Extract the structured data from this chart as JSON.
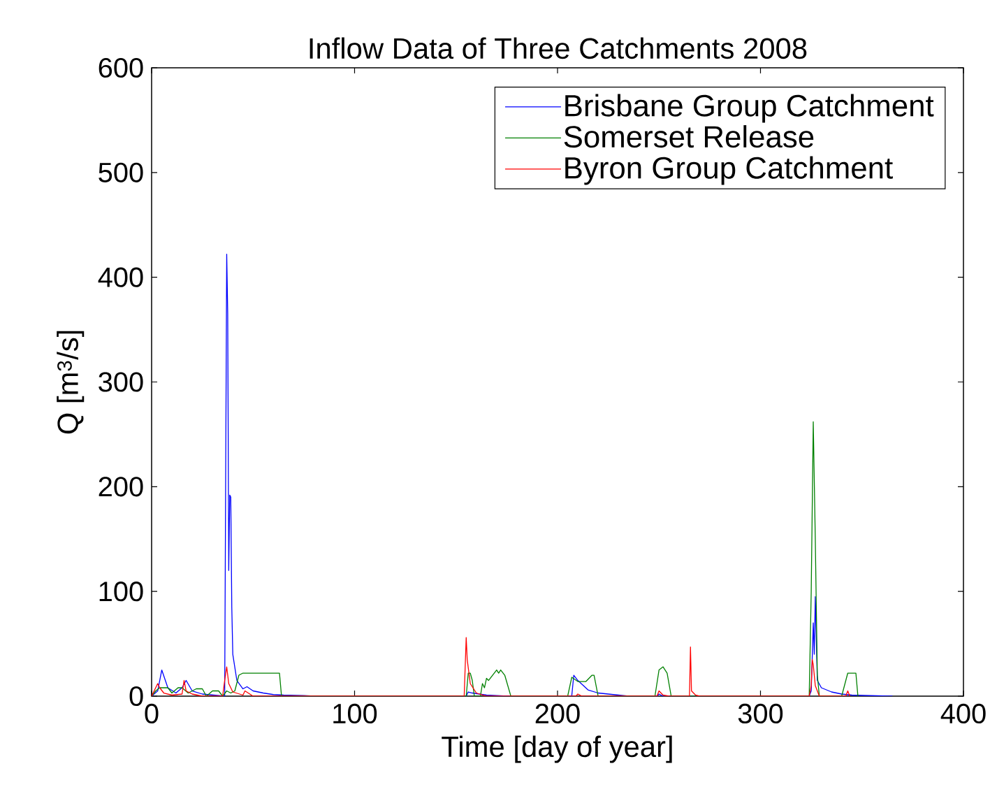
{
  "chart_data": {
    "type": "line",
    "title": "Inflow Data of Three Catchments 2008",
    "xlabel": "Time [day of year]",
    "ylabel": "Q [m$^{3}$/s]",
    "xlim": [
      0,
      400
    ],
    "ylim": [
      0,
      600
    ],
    "xticks": [
      0,
      100,
      200,
      300,
      400
    ],
    "yticks": [
      0,
      100,
      200,
      300,
      400,
      500,
      600
    ],
    "grid": false,
    "legend": "top right",
    "line_style": "solid",
    "marker": "none",
    "series": [
      {
        "name": "Brisbane Group Catchment",
        "color": "#0000ff",
        "x": [
          0,
          3,
          5,
          8,
          12,
          15,
          17,
          20,
          25,
          36,
          37,
          37.5,
          38,
          38.5,
          39,
          39.5,
          40,
          42,
          45,
          47,
          50,
          55,
          60,
          65,
          75,
          80,
          155,
          156,
          158,
          165,
          175,
          207,
          208,
          210,
          215,
          220,
          230,
          235,
          249,
          250,
          252,
          324,
          325,
          326,
          326.5,
          327,
          328,
          330,
          335,
          340,
          345,
          365
        ],
        "values": [
          0,
          5,
          25,
          8,
          3,
          8,
          15,
          5,
          2,
          0,
          422,
          365,
          120,
          192,
          190,
          85,
          40,
          15,
          7,
          9,
          5,
          3,
          1.5,
          1,
          0.5,
          0,
          0,
          4,
          3,
          1,
          0,
          0,
          20,
          15,
          6,
          3,
          1,
          0,
          0,
          2,
          0,
          0,
          5,
          70,
          40,
          95,
          15,
          8,
          4,
          2,
          1,
          0
        ]
      },
      {
        "name": "Somerset Release",
        "color": "#008000",
        "x": [
          0,
          2,
          4,
          8,
          10,
          13,
          15,
          18,
          22,
          25,
          27,
          30,
          33,
          35,
          37,
          39,
          41,
          43,
          45,
          63,
          64,
          155,
          156,
          157,
          158,
          159,
          162,
          163,
          164,
          165,
          166,
          168,
          170,
          171,
          172,
          174,
          177,
          205,
          207,
          210,
          214,
          217,
          218,
          220,
          248,
          250,
          252,
          254,
          256,
          324,
          325,
          326,
          327,
          328,
          329,
          340,
          343,
          347,
          348
        ],
        "values": [
          0,
          5,
          8,
          8,
          3,
          8,
          8,
          3,
          7,
          7,
          0,
          5,
          5,
          0,
          5,
          3,
          5,
          20,
          22,
          22,
          0,
          0,
          22,
          22,
          15,
          0,
          0,
          12,
          8,
          17,
          15,
          20,
          25,
          22,
          25,
          20,
          0,
          0,
          18,
          14,
          14,
          20,
          20,
          0,
          0,
          25,
          28,
          22,
          0,
          0,
          100,
          262,
          150,
          20,
          0,
          0,
          22,
          22,
          0
        ]
      },
      {
        "name": "Byron Group Catchment",
        "color": "#ff0000",
        "x": [
          0,
          3,
          4,
          6,
          10,
          15,
          16,
          17,
          20,
          25,
          35,
          36,
          37,
          38,
          40,
          45,
          46,
          50,
          154,
          155,
          155.5,
          157,
          160,
          165,
          209,
          210,
          212,
          249,
          250,
          252,
          255,
          265,
          265.5,
          266,
          268,
          270,
          324,
          325,
          325.5,
          326,
          327,
          329,
          342,
          343,
          344
        ],
        "values": [
          0,
          12,
          8,
          3,
          1,
          2,
          15,
          5,
          2,
          0,
          0,
          15,
          28,
          12,
          4,
          1,
          5,
          0,
          0,
          56,
          35,
          12,
          3,
          0,
          0,
          2,
          0,
          0,
          5,
          1,
          0,
          0,
          47,
          5,
          1,
          0,
          0,
          10,
          35,
          30,
          10,
          0,
          0,
          5,
          0
        ]
      }
    ]
  }
}
